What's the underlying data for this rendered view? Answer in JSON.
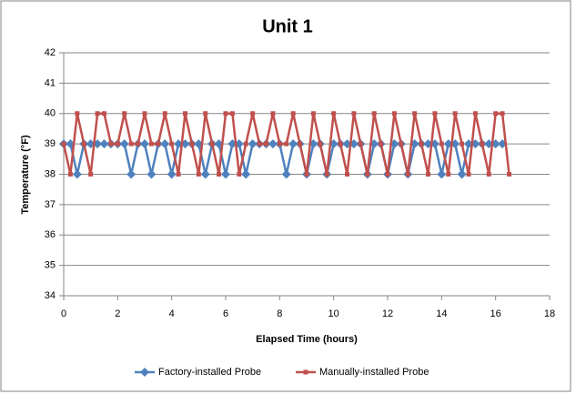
{
  "chart_data": {
    "type": "line",
    "title": "Unit 1",
    "x_label": "Elapsed Time (hours)",
    "y_label": "Temperature (°F)",
    "xlim": [
      0,
      18
    ],
    "xticks": [
      0,
      2,
      4,
      6,
      8,
      10,
      12,
      14,
      16,
      18
    ],
    "ylim": [
      34,
      42
    ],
    "yticks": [
      34,
      35,
      36,
      37,
      38,
      39,
      40,
      41,
      42
    ],
    "grid": true,
    "legend": "bottom",
    "series": [
      {
        "name": "Factory-installed Probe",
        "color": "#4f81bd",
        "marker": "diamond",
        "x": [
          0,
          0.25,
          0.5,
          0.75,
          1,
          1.25,
          1.5,
          1.75,
          2,
          2.25,
          2.5,
          2.75,
          3,
          3.25,
          3.5,
          3.75,
          4,
          4.25,
          4.5,
          4.75,
          5,
          5.25,
          5.5,
          5.75,
          6,
          6.25,
          6.5,
          6.75,
          7,
          7.25,
          7.5,
          7.75,
          8,
          8.25,
          8.5,
          8.75,
          9,
          9.25,
          9.5,
          9.75,
          10,
          10.25,
          10.5,
          10.75,
          11,
          11.25,
          11.5,
          11.75,
          12,
          12.25,
          12.5,
          12.75,
          13,
          13.25,
          13.5,
          13.75,
          14,
          14.25,
          14.5,
          14.75,
          15,
          15.25,
          15.5,
          15.75,
          16,
          16.25
        ],
        "values": [
          39,
          39,
          38,
          39,
          39,
          39,
          39,
          39,
          39,
          39,
          38,
          39,
          39,
          38,
          39,
          39,
          38,
          39,
          39,
          39,
          39,
          38,
          39,
          39,
          38,
          39,
          39,
          38,
          39,
          39,
          39,
          39,
          39,
          38,
          39,
          39,
          38,
          39,
          39,
          38,
          39,
          39,
          39,
          39,
          39,
          38,
          39,
          39,
          38,
          39,
          39,
          38,
          39,
          39,
          39,
          39,
          38,
          39,
          39,
          38,
          39,
          39,
          39,
          39,
          39,
          39
        ]
      },
      {
        "name": "Manually-installed Probe",
        "color": "#c0504d",
        "marker": "square",
        "x": [
          0,
          0.25,
          0.5,
          0.75,
          1,
          1.25,
          1.5,
          1.75,
          2,
          2.25,
          2.5,
          2.75,
          3,
          3.25,
          3.5,
          3.75,
          4,
          4.25,
          4.5,
          4.75,
          5,
          5.25,
          5.5,
          5.75,
          6,
          6.25,
          6.5,
          6.75,
          7,
          7.25,
          7.5,
          7.75,
          8,
          8.25,
          8.5,
          8.75,
          9,
          9.25,
          9.5,
          9.75,
          10,
          10.25,
          10.5,
          10.75,
          11,
          11.25,
          11.5,
          11.75,
          12,
          12.25,
          12.5,
          12.75,
          13,
          13.25,
          13.5,
          13.75,
          14,
          14.25,
          14.5,
          14.75,
          15,
          15.25,
          15.5,
          15.75,
          16,
          16.25,
          16.5
        ],
        "values": [
          39,
          38,
          40,
          39,
          38,
          40,
          40,
          39,
          39,
          40,
          39,
          39,
          40,
          39,
          39,
          40,
          39,
          38,
          40,
          39,
          38,
          40,
          39,
          38,
          40,
          40,
          38,
          39,
          40,
          39,
          39,
          40,
          39,
          39,
          40,
          39,
          38,
          40,
          39,
          38,
          40,
          39,
          38,
          40,
          39,
          38,
          40,
          39,
          38,
          40,
          39,
          38,
          40,
          39,
          38,
          40,
          39,
          38,
          40,
          39,
          38,
          40,
          39,
          38,
          40,
          40,
          38
        ]
      }
    ]
  }
}
